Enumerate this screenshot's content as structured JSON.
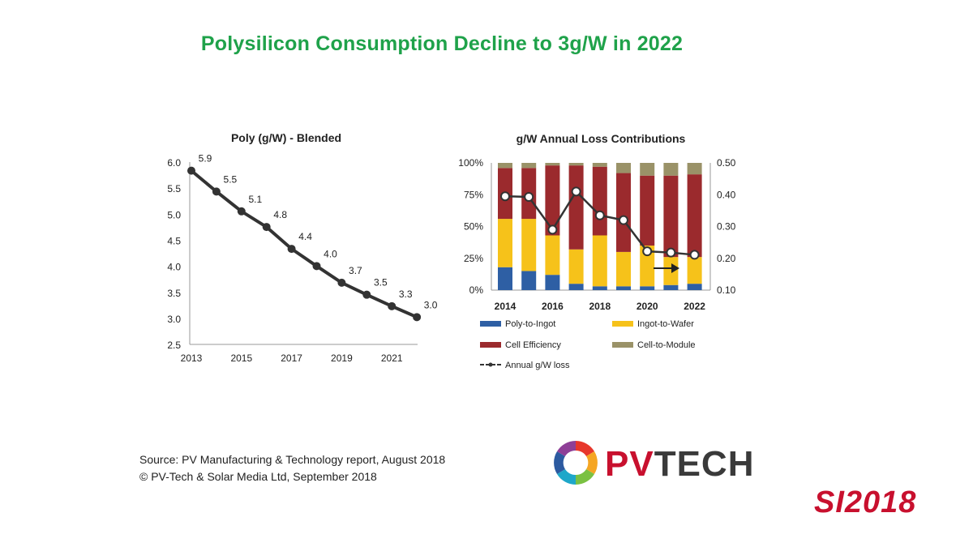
{
  "title": "Polysilicon Consumption Decline to 3g/W in 2022",
  "source_lines": [
    "Source: PV Manufacturing & Technology report, August 2018",
    "© PV-Tech & Solar Media Ltd, September 2018"
  ],
  "logos": {
    "pvtech_prefix": "PV",
    "pvtech_suffix": "TECH",
    "si": "SI2018"
  },
  "colors": {
    "title": "#1fa24a",
    "line": "#333333",
    "poly_to_ingot": "#2e5fa4",
    "ingot_to_wafer": "#f6c21a",
    "cell_efficiency": "#9b2a2d",
    "cell_to_module": "#9a9268",
    "si_red": "#c8102e",
    "pv_dark": "#3a3a3a"
  },
  "chart_data": [
    {
      "type": "line",
      "title": "Poly (g/W) - Blended",
      "x": [
        2013,
        2014,
        2015,
        2016,
        2017,
        2018,
        2019,
        2020,
        2021,
        2022
      ],
      "values": [
        5.85,
        5.45,
        5.07,
        4.77,
        4.35,
        4.02,
        3.7,
        3.47,
        3.25,
        3.04
      ],
      "data_labels": [
        "5.9",
        "5.5",
        "5.1",
        "4.8",
        "4.4",
        "4.0",
        "3.7",
        "3.5",
        "3.3",
        "3.0"
      ],
      "x_tick_labels": [
        "2013",
        "2015",
        "2017",
        "2019",
        "2021"
      ],
      "y_tick_labels": [
        "6.0",
        "5.5",
        "5.0",
        "4.5",
        "4.0",
        "3.5",
        "3.0",
        "2.5"
      ],
      "ylim": [
        2.5,
        6.0
      ],
      "grid": false
    },
    {
      "type": "bar",
      "stacked": true,
      "title": "g/W Annual Loss Contributions",
      "categories": [
        "2014",
        "2015",
        "2016",
        "2017",
        "2018",
        "2019",
        "2020",
        "2021",
        "2022"
      ],
      "x_tick_labels": [
        "2014",
        "2016",
        "2018",
        "2020",
        "2022"
      ],
      "y_tick_labels": [
        "100%",
        "75%",
        "50%",
        "25%",
        "0%"
      ],
      "y2_tick_labels": [
        "0.50",
        "0.40",
        "0.30",
        "0.20",
        "0.10"
      ],
      "ylim": [
        0,
        100
      ],
      "y2lim": [
        0.1,
        0.5
      ],
      "series": [
        {
          "name": "Poly-to-Ingot",
          "values": [
            18,
            15,
            12,
            5,
            3,
            3,
            3,
            4,
            5
          ]
        },
        {
          "name": "Ingot-to-Wafer",
          "values": [
            38,
            41,
            31,
            27,
            40,
            27,
            32,
            22,
            21
          ]
        },
        {
          "name": "Cell Efficiency",
          "values": [
            40,
            40,
            55,
            66,
            54,
            62,
            55,
            64,
            65
          ]
        },
        {
          "name": "Cell-to-Module",
          "values": [
            4,
            4,
            2,
            2,
            3,
            8,
            10,
            10,
            9
          ]
        }
      ],
      "line_series": {
        "name": "Annual g/W loss",
        "axis": "secondary",
        "values": [
          0.395,
          0.393,
          0.29,
          0.41,
          0.335,
          0.32,
          0.222,
          0.218,
          0.211
        ]
      },
      "annotation": "arrow pointing right near 2020–2021",
      "legend_position": "bottom",
      "grid": false
    }
  ]
}
